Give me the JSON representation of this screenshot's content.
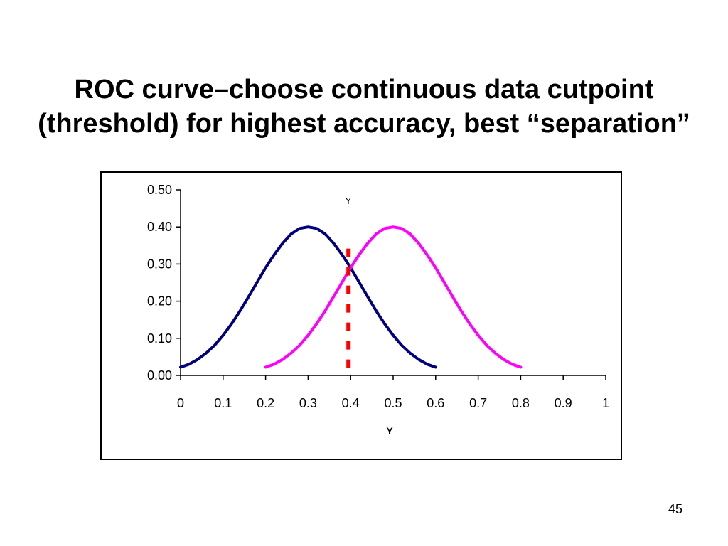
{
  "slide": {
    "title_line1": "ROC curve–choose continuous data cutpoint",
    "title_line2": "(threshold) for highest accuracy, best “separation”",
    "page_number": "45"
  },
  "chart_data": {
    "type": "line",
    "title": "Y",
    "xlabel": "Y",
    "ylabel": "",
    "xlim": [
      0,
      1
    ],
    "ylim": [
      0,
      0.5
    ],
    "x_ticks": [
      "0",
      "0.1",
      "0.2",
      "0.3",
      "0.4",
      "0.5",
      "0.6",
      "0.7",
      "0.8",
      "0.9",
      "1"
    ],
    "y_ticks": [
      "0.00",
      "0.10",
      "0.20",
      "0.30",
      "0.40",
      "0.50"
    ],
    "grid": false,
    "legend": "none",
    "series": [
      {
        "color": "#000080",
        "style": "solid",
        "x": [
          0.0,
          0.02,
          0.04,
          0.06,
          0.08,
          0.1,
          0.12,
          0.14,
          0.16,
          0.18,
          0.2,
          0.22,
          0.24,
          0.26,
          0.28,
          0.3,
          0.32,
          0.34,
          0.36,
          0.38,
          0.4,
          0.42,
          0.44,
          0.46,
          0.48,
          0.5,
          0.52,
          0.54,
          0.56,
          0.58,
          0.6
        ],
        "y": [
          0.022,
          0.03,
          0.043,
          0.06,
          0.081,
          0.108,
          0.139,
          0.174,
          0.212,
          0.251,
          0.29,
          0.325,
          0.356,
          0.381,
          0.396,
          0.4,
          0.396,
          0.381,
          0.356,
          0.325,
          0.29,
          0.251,
          0.212,
          0.174,
          0.139,
          0.108,
          0.081,
          0.06,
          0.043,
          0.03,
          0.022
        ]
      },
      {
        "color": "#FF00FF",
        "style": "solid",
        "x": [
          0.2,
          0.22,
          0.24,
          0.26,
          0.28,
          0.3,
          0.32,
          0.34,
          0.36,
          0.38,
          0.4,
          0.42,
          0.44,
          0.46,
          0.48,
          0.5,
          0.52,
          0.54,
          0.56,
          0.58,
          0.6,
          0.62,
          0.64,
          0.66,
          0.68,
          0.7,
          0.72,
          0.74,
          0.76,
          0.78,
          0.8
        ],
        "y": [
          0.022,
          0.03,
          0.043,
          0.06,
          0.081,
          0.108,
          0.139,
          0.174,
          0.212,
          0.251,
          0.29,
          0.325,
          0.356,
          0.381,
          0.396,
          0.4,
          0.396,
          0.381,
          0.356,
          0.325,
          0.29,
          0.251,
          0.212,
          0.174,
          0.139,
          0.108,
          0.081,
          0.06,
          0.043,
          0.03,
          0.022
        ]
      },
      {
        "color": "#FF0000",
        "style": "dashed",
        "x": [
          0.395,
          0.395
        ],
        "y": [
          0.02,
          0.35
        ]
      }
    ]
  }
}
